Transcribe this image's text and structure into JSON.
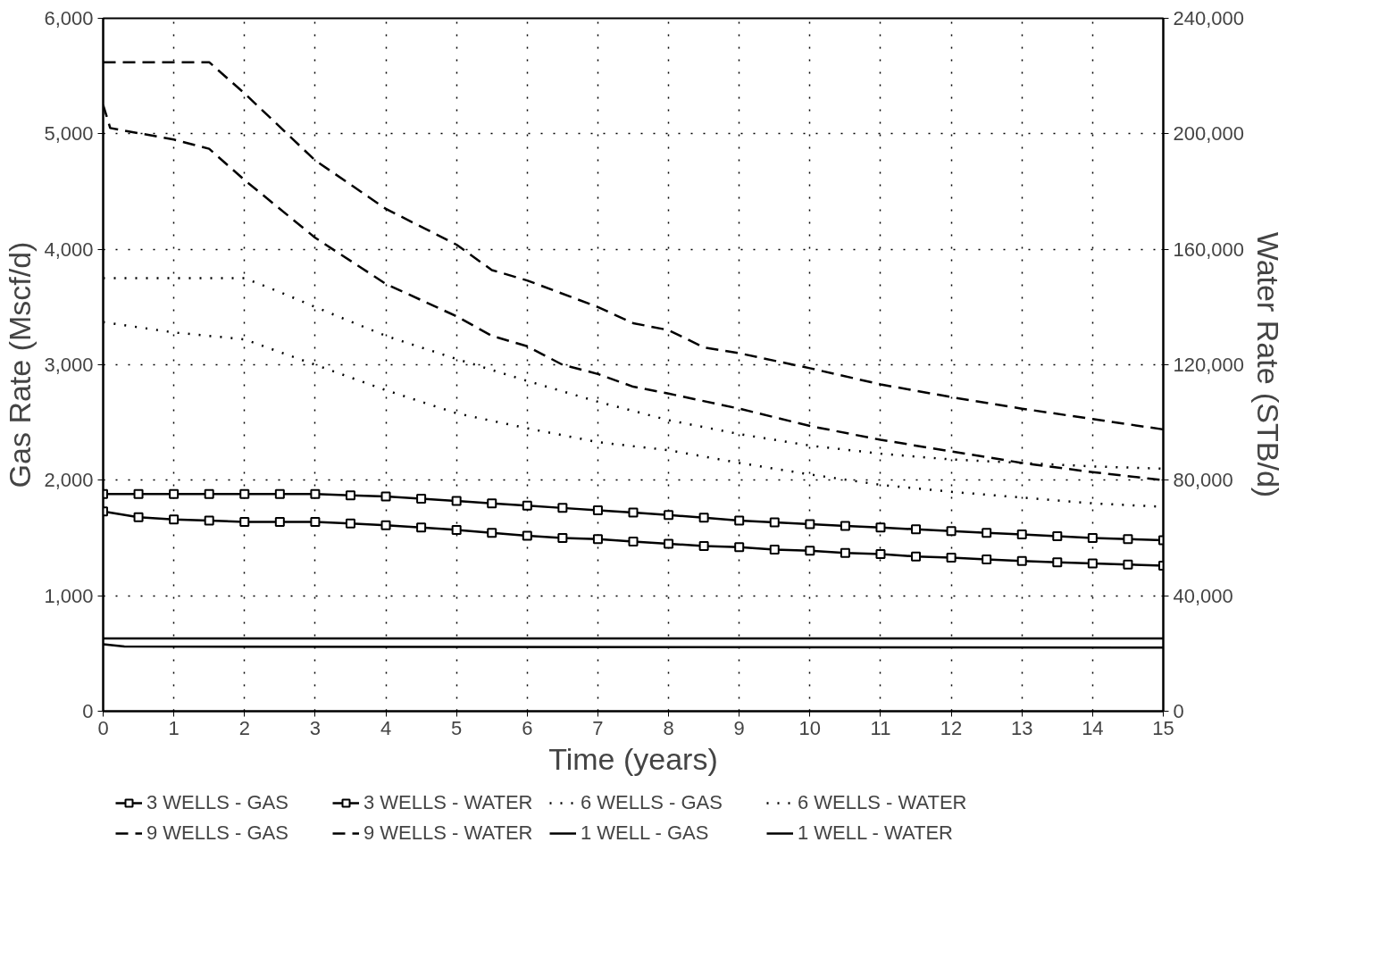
{
  "chart_data": {
    "type": "line",
    "xlabel": "Time (years)",
    "ylabel": "Gas Rate (Mscf/d)",
    "y2label": "Water Rate (STB/d)",
    "xlim": [
      0,
      15
    ],
    "xticks": [
      0,
      1,
      2,
      3,
      4,
      5,
      6,
      7,
      8,
      9,
      10,
      11,
      12,
      13,
      14,
      15
    ],
    "ylim": [
      0,
      6000
    ],
    "yticks": [
      {
        "value": 0,
        "label": "0"
      },
      {
        "value": 1000,
        "label": "1,000"
      },
      {
        "value": 2000,
        "label": "2,000"
      },
      {
        "value": 3000,
        "label": "3,000"
      },
      {
        "value": 4000,
        "label": "4,000"
      },
      {
        "value": 5000,
        "label": "5,000"
      },
      {
        "value": 6000,
        "label": "6,000"
      }
    ],
    "y2lim": [
      0,
      240000
    ],
    "y2ticks": [
      {
        "value": 0,
        "label": "0"
      },
      {
        "value": 40000,
        "label": "40,000"
      },
      {
        "value": 80000,
        "label": "80,000"
      },
      {
        "value": 120000,
        "label": "120,000"
      },
      {
        "value": 160000,
        "label": "160,000"
      },
      {
        "value": 200000,
        "label": "200,000"
      },
      {
        "value": 240000,
        "label": "240,000"
      }
    ],
    "grid": true,
    "legend": "bottom",
    "series": [
      {
        "name": "3 WELLS - GAS",
        "color": "#000000",
        "marker": "square",
        "line_style": "solid",
        "x": [
          0,
          0.5,
          1,
          1.5,
          2,
          2.5,
          3,
          3.5,
          4,
          4.5,
          5,
          5.5,
          6,
          6.5,
          7,
          7.5,
          8,
          8.5,
          9,
          9.5,
          10,
          10.5,
          11,
          11.5,
          12,
          12.5,
          13,
          13.5,
          14,
          14.5,
          15
        ],
        "values": [
          1880,
          1880,
          1880,
          1880,
          1880,
          1880,
          1880,
          1870,
          1860,
          1840,
          1820,
          1800,
          1780,
          1760,
          1740,
          1720,
          1700,
          1675,
          1650,
          1635,
          1620,
          1605,
          1590,
          1575,
          1560,
          1545,
          1530,
          1515,
          1500,
          1490,
          1480
        ]
      },
      {
        "name": "3 WELLS - WATER",
        "axis": "y2",
        "color": "#000000",
        "marker": "square",
        "line_style": "solid",
        "x": [
          0,
          0.5,
          1,
          1.5,
          2,
          2.5,
          3,
          3.5,
          4,
          4.5,
          5,
          5.5,
          6,
          6.5,
          7,
          7.5,
          8,
          8.5,
          9,
          9.5,
          10,
          10.5,
          11,
          11.5,
          12,
          12.5,
          13,
          13.5,
          14,
          14.5,
          15
        ],
        "values": [
          69200,
          67200,
          66400,
          66000,
          65600,
          65600,
          65600,
          65000,
          64400,
          63600,
          62800,
          61800,
          60800,
          60000,
          59600,
          58800,
          58000,
          57200,
          56800,
          56000,
          55600,
          54800,
          54400,
          53600,
          53200,
          52600,
          52000,
          51600,
          51200,
          50800,
          50400
        ]
      },
      {
        "name": "6 WELLS - GAS",
        "color": "#000000",
        "marker": "none",
        "line_style": "dotted",
        "x": [
          0,
          1,
          2,
          2.5,
          3,
          4,
          5,
          6,
          7,
          8,
          9,
          10,
          11,
          12,
          13,
          14,
          15
        ],
        "values": [
          3750,
          3750,
          3750,
          3630,
          3500,
          3250,
          3050,
          2860,
          2680,
          2520,
          2400,
          2300,
          2230,
          2180,
          2150,
          2120,
          2100
        ]
      },
      {
        "name": "6 WELLS - WATER",
        "axis": "y2",
        "color": "#000000",
        "marker": "none",
        "line_style": "dotted",
        "x": [
          0,
          1,
          2,
          3,
          4,
          5,
          6,
          7,
          8,
          9,
          10,
          11,
          12,
          13,
          14,
          15
        ],
        "values": [
          134800,
          131200,
          128800,
          120000,
          111200,
          103200,
          98000,
          93200,
          90400,
          86000,
          82000,
          78400,
          76000,
          74000,
          72000,
          70800
        ]
      },
      {
        "name": "9 WELLS - GAS",
        "color": "#000000",
        "marker": "none",
        "line_style": "dashed",
        "x": [
          0,
          1,
          1.5,
          2,
          3,
          4,
          5,
          5.5,
          6,
          7,
          7.5,
          8,
          8.5,
          9,
          10,
          11,
          12,
          13,
          14,
          15
        ],
        "values": [
          5620,
          5620,
          5620,
          5350,
          4770,
          4350,
          4040,
          3820,
          3730,
          3500,
          3360,
          3300,
          3150,
          3100,
          2970,
          2830,
          2720,
          2620,
          2530,
          2440
        ]
      },
      {
        "name": "9 WELLS - WATER",
        "axis": "y2",
        "color": "#000000",
        "marker": "none",
        "line_style": "dashed",
        "x": [
          0,
          0.1,
          1,
          1.5,
          2,
          3,
          4,
          5,
          5.5,
          6,
          6.5,
          7,
          7.5,
          8,
          9,
          10,
          11,
          12,
          13,
          14,
          15
        ],
        "values": [
          210000,
          202000,
          198000,
          194800,
          184000,
          164000,
          148000,
          136800,
          130000,
          126400,
          120000,
          116800,
          112400,
          110000,
          104800,
          98800,
          94000,
          90000,
          86000,
          82800,
          80000
        ]
      },
      {
        "name": "1 WELL - GAS",
        "color": "#000000",
        "marker": "none",
        "line_style": "solid",
        "x": [
          0,
          15
        ],
        "values": [
          630,
          630
        ]
      },
      {
        "name": "1 WELL - WATER",
        "axis": "y2",
        "color": "#000000",
        "marker": "none",
        "line_style": "solid",
        "x": [
          0,
          0.3,
          15
        ],
        "values": [
          23200,
          22400,
          22000
        ]
      }
    ]
  }
}
